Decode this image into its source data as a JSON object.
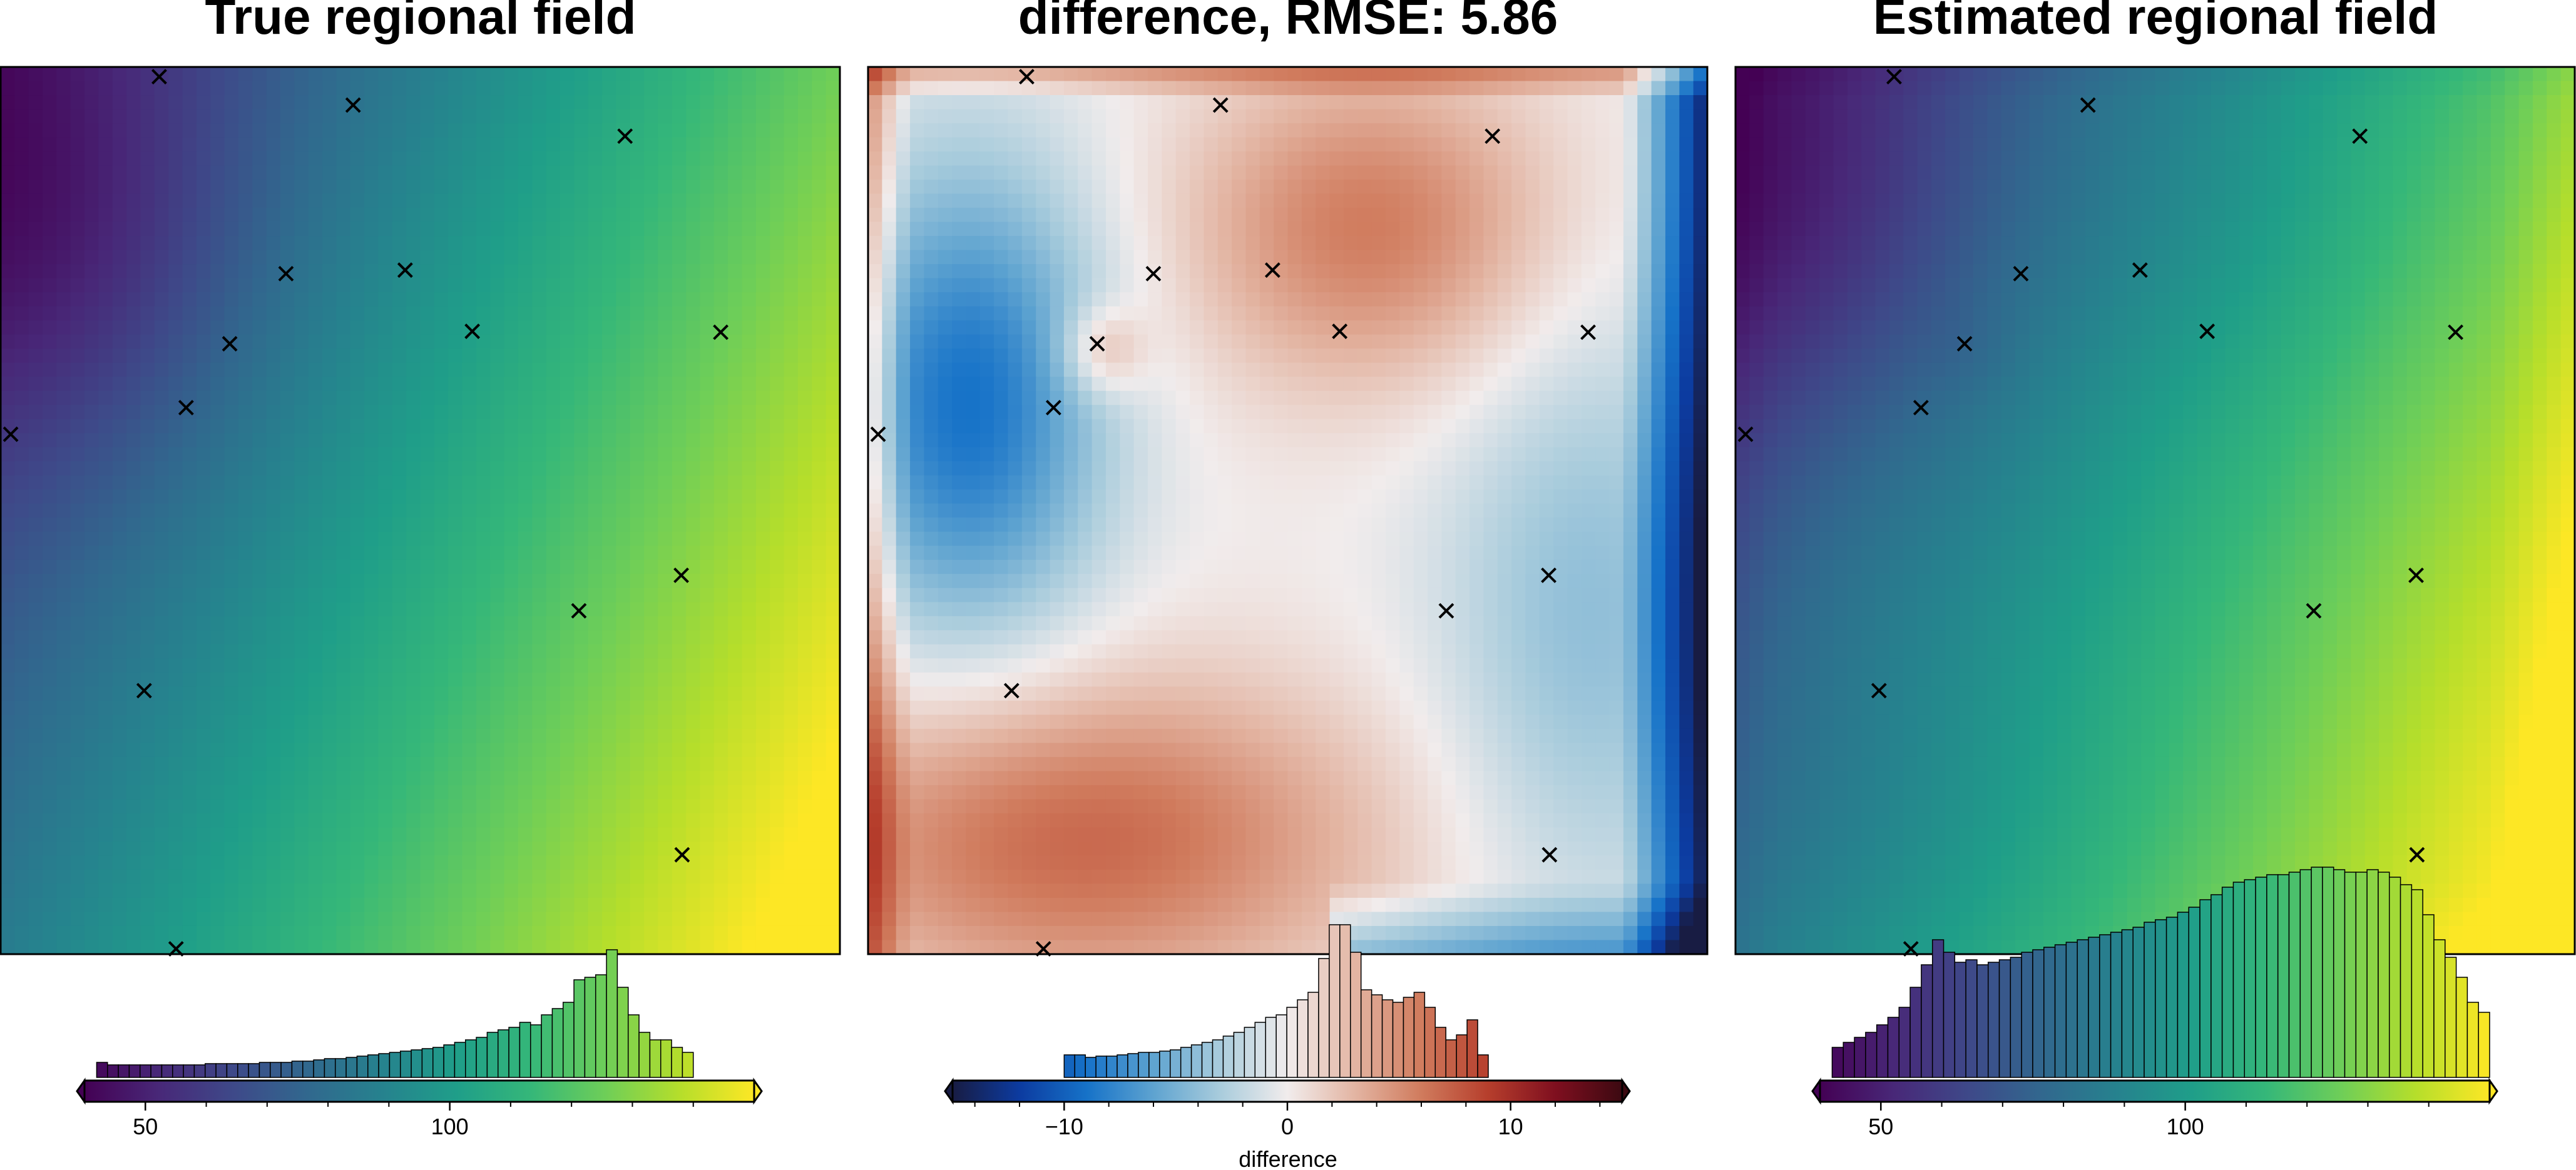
{
  "chart_data": [
    {
      "type": "heatmap",
      "title": "True regional field",
      "field": "true",
      "colormap": "viridis",
      "colorbar": {
        "range": [
          40,
          150
        ],
        "ticks": [
          50,
          100
        ],
        "tick_labels": [
          "50",
          "100"
        ],
        "minor_ticks": [
          60,
          70,
          80,
          90,
          110,
          120,
          130,
          140
        ],
        "label": "",
        "extend": "both",
        "histogram": {
          "bin_range": [
            42,
            140
          ],
          "counts": [
            12,
            10,
            10,
            10,
            10,
            10,
            10,
            10,
            10,
            10,
            11,
            11,
            11,
            11,
            11,
            12,
            12,
            12,
            13,
            13,
            14,
            15,
            15,
            16,
            17,
            18,
            19,
            20,
            21,
            22,
            23,
            24,
            26,
            28,
            30,
            32,
            36,
            38,
            40,
            44,
            42,
            50,
            55,
            60,
            78,
            80,
            82,
            102,
            72,
            50,
            36,
            30,
            30,
            24,
            20
          ]
        }
      },
      "markers_shown": true
    },
    {
      "type": "heatmap",
      "title": "difference, RMSE: 5.86",
      "field": "difference",
      "colormap": "balance",
      "colorbar": {
        "range": [
          -15,
          15
        ],
        "ticks": [
          -10,
          0,
          10
        ],
        "tick_labels": [
          "−10",
          "0",
          "10"
        ],
        "minor_ticks": [
          -14,
          -12,
          -8,
          -6,
          -4,
          -2,
          2,
          4,
          6,
          8,
          12,
          14
        ],
        "label": "difference",
        "extend": "both",
        "histogram": {
          "bin_range": [
            -10,
            9
          ],
          "counts": [
            18,
            18,
            16,
            17,
            17,
            18,
            19,
            20,
            20,
            21,
            22,
            24,
            26,
            28,
            30,
            33,
            36,
            40,
            44,
            48,
            50,
            56,
            62,
            68,
            95,
            122,
            122,
            100,
            70,
            66,
            62,
            60,
            64,
            68,
            56,
            40,
            30,
            34,
            46,
            18
          ]
        }
      },
      "markers_shown": true
    },
    {
      "type": "heatmap",
      "title": "Estimated regional field",
      "field": "estimated",
      "colormap": "viridis",
      "colorbar": {
        "range": [
          40,
          150
        ],
        "ticks": [
          50,
          100
        ],
        "tick_labels": [
          "50",
          "100"
        ],
        "minor_ticks": [
          60,
          70,
          80,
          90,
          110,
          120,
          130,
          140
        ],
        "label": "",
        "extend": "both",
        "histogram": {
          "bin_range": [
            42,
            150
          ],
          "counts": [
            24,
            28,
            32,
            36,
            42,
            48,
            56,
            72,
            90,
            110,
            100,
            92,
            94,
            90,
            92,
            94,
            96,
            100,
            102,
            104,
            106,
            108,
            110,
            112,
            114,
            116,
            118,
            120,
            124,
            126,
            128,
            132,
            136,
            142,
            146,
            152,
            156,
            158,
            160,
            162,
            162,
            164,
            166,
            168,
            168,
            166,
            164,
            164,
            166,
            164,
            160,
            154,
            150,
            130,
            110,
            96,
            80,
            60,
            52
          ]
        }
      },
      "markers_shown": true
    }
  ],
  "markers": [
    {
      "x": 0.189,
      "y": 0.011
    },
    {
      "x": 0.42,
      "y": 0.043
    },
    {
      "x": 0.744,
      "y": 0.078
    },
    {
      "x": 0.34,
      "y": 0.233
    },
    {
      "x": 0.482,
      "y": 0.229
    },
    {
      "x": 0.273,
      "y": 0.312
    },
    {
      "x": 0.562,
      "y": 0.298
    },
    {
      "x": 0.858,
      "y": 0.299
    },
    {
      "x": 0.221,
      "y": 0.384
    },
    {
      "x": 0.012,
      "y": 0.414
    },
    {
      "x": 0.811,
      "y": 0.573
    },
    {
      "x": 0.689,
      "y": 0.613
    },
    {
      "x": 0.171,
      "y": 0.703
    },
    {
      "x": 0.812,
      "y": 0.888
    },
    {
      "x": 0.209,
      "y": 0.994
    }
  ]
}
